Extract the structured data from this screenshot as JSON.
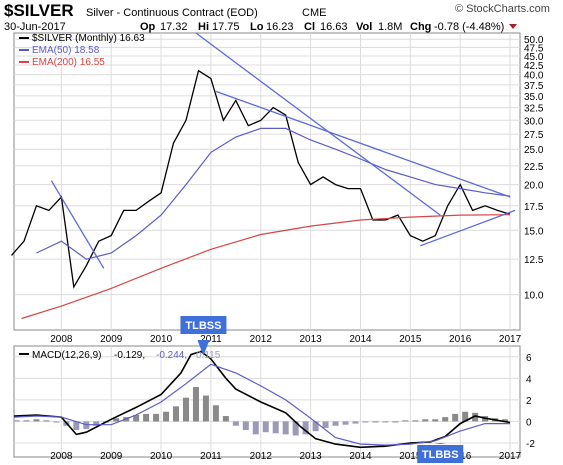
{
  "header": {
    "symbol": "$SILVER",
    "description": "Silver - Continuous Contract (EOD)",
    "exchange": "CME",
    "date": "30-Jun-2017",
    "open_label": "Op",
    "open": "17.32",
    "high_label": "Hi",
    "high": "17.75",
    "low_label": "Lo",
    "low": "16.23",
    "close_label": "Cl",
    "close": "16.63",
    "volume_label": "Vol",
    "volume": "1.8M",
    "change_label": "Chg",
    "change": "-0.78 (-4.48%)",
    "brand": "© StockCharts.com"
  },
  "colors": {
    "price": "#000000",
    "ema50": "#5b5bc7",
    "ema200": "#d64545",
    "trendline": "#5b6ad8",
    "hist": "#9a9ab8",
    "hist_pos": "#8a8a8a",
    "annotation_fill": "#3f6fd8",
    "annotation_text": "#ffffff",
    "change_marker": "#b01b2e",
    "grid": "#dcdcdc"
  },
  "chart_data": [
    {
      "type": "line",
      "title": "",
      "legend": [
        {
          "label": "$SILVER (Monthly) 16.63",
          "color": "#000000"
        },
        {
          "label": "EMA(50) 18.58",
          "color": "#5b5bc7"
        },
        {
          "label": "EMA(200) 16.55",
          "color": "#d64545"
        }
      ],
      "legend_position": "top-left",
      "x_ticks": [
        "2008",
        "2009",
        "2010",
        "2011",
        "2012",
        "2013",
        "2014",
        "2015",
        "2016",
        "2017"
      ],
      "y_ticks": [
        10.0,
        12.5,
        15.0,
        17.5,
        20.0,
        22.5,
        25.0,
        27.5,
        30.0,
        32.5,
        35.0,
        37.5,
        40.0,
        42.5,
        45.0,
        47.5,
        50.0
      ],
      "y_tick_labels": [
        "10.0",
        "12.5",
        "15.0",
        "17.5",
        "20.0",
        "22.5",
        "25.0",
        "27.5",
        "30.0",
        "32.5",
        "35.0",
        "37.5",
        "40.0",
        "42.5",
        "45.0",
        "47.5",
        "50.0"
      ],
      "ylim": [
        8.0,
        52.0
      ],
      "yscale": "log",
      "xlim": [
        2007.55,
        2017.7
      ],
      "grid": true,
      "series": [
        {
          "name": "$SILVER (Monthly)",
          "x": [
            2007.5,
            2007.75,
            2008.0,
            2008.25,
            2008.5,
            2008.75,
            2009.0,
            2009.25,
            2009.5,
            2009.75,
            2010.0,
            2010.25,
            2010.5,
            2010.75,
            2011.0,
            2011.25,
            2011.5,
            2011.75,
            2012.0,
            2012.25,
            2012.5,
            2012.75,
            2013.0,
            2013.25,
            2013.5,
            2013.75,
            2014.0,
            2014.25,
            2014.5,
            2014.75,
            2015.0,
            2015.25,
            2015.5,
            2015.75,
            2016.0,
            2016.25,
            2016.5,
            2016.75,
            2017.0,
            2017.25,
            2017.5
          ],
          "values": [
            12.8,
            14.0,
            17.5,
            17.0,
            18.5,
            10.5,
            12.0,
            14.0,
            14.5,
            17.0,
            17.0,
            18.0,
            19.0,
            26.0,
            30.0,
            41.0,
            39.0,
            30.0,
            34.0,
            29.0,
            30.0,
            32.5,
            31.0,
            23.0,
            20.0,
            21.0,
            20.0,
            19.5,
            19.5,
            16.0,
            16.0,
            16.5,
            14.5,
            14.0,
            14.5,
            17.5,
            20.0,
            17.0,
            17.5,
            17.0,
            16.6
          ]
        },
        {
          "name": "EMA(50)",
          "x": [
            2008.0,
            2008.5,
            2009.0,
            2009.5,
            2010.0,
            2010.5,
            2011.0,
            2011.5,
            2012.0,
            2012.5,
            2013.0,
            2013.5,
            2014.0,
            2014.5,
            2015.0,
            2015.5,
            2016.0,
            2016.5,
            2017.0,
            2017.5
          ],
          "values": [
            13.0,
            14.0,
            12.5,
            13.0,
            14.5,
            16.5,
            20.0,
            24.5,
            27.0,
            28.5,
            28.5,
            26.5,
            25.0,
            23.5,
            22.0,
            21.0,
            20.0,
            19.5,
            19.0,
            18.6
          ]
        },
        {
          "name": "EMA(200)",
          "x": [
            2007.7,
            2008.5,
            2009.5,
            2010.5,
            2011.5,
            2012.5,
            2013.5,
            2014.5,
            2015.5,
            2016.5,
            2017.5
          ],
          "values": [
            8.6,
            9.3,
            10.4,
            11.8,
            13.3,
            14.6,
            15.4,
            16.0,
            16.3,
            16.5,
            16.55
          ]
        }
      ],
      "trendlines": [
        {
          "x": [
            2008.3,
            2009.35
          ],
          "values": [
            20.5,
            11.8
          ]
        },
        {
          "x": [
            2011.2,
            2016.1
          ],
          "values": [
            52.0,
            16.5
          ]
        },
        {
          "x": [
            2011.6,
            2017.5
          ],
          "values": [
            36.0,
            18.5
          ]
        },
        {
          "x": [
            2015.7,
            2017.6
          ],
          "values": [
            13.6,
            17.0
          ]
        }
      ]
    },
    {
      "type": "line",
      "title": "",
      "legend": [
        {
          "label": "MACD(12,26,9)",
          "color": "#000000"
        },
        {
          "label": "-0.129,",
          "color": "#000000"
        },
        {
          "label": "-0.244,",
          "color": "#5b5bc7"
        },
        {
          "label": "0.115",
          "color": "#9a9ab8"
        }
      ],
      "legend_position": "top-left",
      "x_ticks": [
        "2008",
        "2009",
        "2010",
        "2011",
        "2012",
        "2013",
        "2014",
        "2015",
        "2016",
        "2017"
      ],
      "y_ticks": [
        -2,
        0,
        2,
        4,
        6
      ],
      "y_tick_labels": [
        "-2",
        "0",
        "2",
        "4",
        "6"
      ],
      "ylim": [
        -3.3,
        7.0
      ],
      "xlim": [
        2007.55,
        2017.7
      ],
      "grid": true,
      "series": [
        {
          "name": "MACD",
          "x": [
            2007.55,
            2008.0,
            2008.5,
            2008.8,
            2009.0,
            2009.5,
            2010.0,
            2010.5,
            2010.9,
            2011.1,
            2011.3,
            2011.5,
            2011.8,
            2012.0,
            2012.5,
            2013.0,
            2013.3,
            2013.6,
            2014.0,
            2014.5,
            2015.0,
            2015.5,
            2015.9,
            2016.2,
            2016.5,
            2016.8,
            2017.0,
            2017.5
          ],
          "values": [
            0.5,
            0.6,
            0.4,
            -1.2,
            -1.0,
            0.2,
            1.3,
            2.5,
            4.5,
            6.2,
            6.5,
            5.8,
            4.0,
            3.0,
            1.8,
            0.8,
            -0.5,
            -1.6,
            -2.1,
            -2.4,
            -2.3,
            -2.0,
            -1.9,
            -1.4,
            -0.2,
            0.5,
            0.3,
            -0.1
          ]
        },
        {
          "name": "Signal",
          "x": [
            2007.55,
            2008.0,
            2008.5,
            2009.0,
            2009.5,
            2010.0,
            2010.5,
            2011.0,
            2011.5,
            2012.0,
            2012.5,
            2013.0,
            2013.5,
            2014.0,
            2014.5,
            2015.0,
            2015.5,
            2016.0,
            2016.5,
            2017.0,
            2017.5
          ],
          "values": [
            0.4,
            0.5,
            0.4,
            -0.3,
            -0.3,
            0.6,
            1.8,
            3.5,
            5.3,
            4.5,
            3.3,
            2.0,
            0.3,
            -1.5,
            -2.1,
            -2.2,
            -2.1,
            -1.8,
            -0.9,
            -0.2,
            -0.2
          ]
        },
        {
          "name": "Histogram",
          "type": "bar",
          "x": [
            2007.6,
            2007.8,
            2008.0,
            2008.2,
            2008.4,
            2008.6,
            2008.8,
            2009.0,
            2009.2,
            2009.4,
            2009.6,
            2009.8,
            2010.0,
            2010.2,
            2010.4,
            2010.6,
            2010.8,
            2011.0,
            2011.2,
            2011.4,
            2011.6,
            2011.8,
            2012.0,
            2012.2,
            2012.4,
            2012.6,
            2012.8,
            2013.0,
            2013.2,
            2013.4,
            2013.6,
            2013.8,
            2014.0,
            2014.2,
            2014.4,
            2014.6,
            2014.8,
            2015.0,
            2015.2,
            2015.4,
            2015.6,
            2015.8,
            2016.0,
            2016.2,
            2016.4,
            2016.6,
            2016.8,
            2017.0,
            2017.2,
            2017.4
          ],
          "values": [
            0.1,
            0.1,
            0.2,
            0.1,
            -0.1,
            -0.4,
            -0.8,
            -0.7,
            -0.4,
            0.0,
            0.3,
            0.4,
            0.6,
            0.7,
            0.7,
            0.9,
            1.4,
            2.2,
            3.2,
            2.4,
            1.5,
            0.5,
            -0.4,
            -0.8,
            -1.2,
            -1.0,
            -1.1,
            -1.2,
            -1.3,
            -1.2,
            -0.9,
            -0.6,
            -0.4,
            -0.3,
            -0.2,
            -0.1,
            0.0,
            -0.1,
            0.0,
            0.1,
            0.1,
            0.2,
            0.2,
            0.4,
            0.7,
            0.9,
            0.8,
            0.5,
            0.3,
            0.2
          ]
        }
      ],
      "annotations": [
        {
          "text": "TLBSS",
          "x": 2011.35,
          "value": 5.9
        },
        {
          "text": "TLBBS",
          "x": 2016.1,
          "value": -2.0
        }
      ]
    }
  ]
}
